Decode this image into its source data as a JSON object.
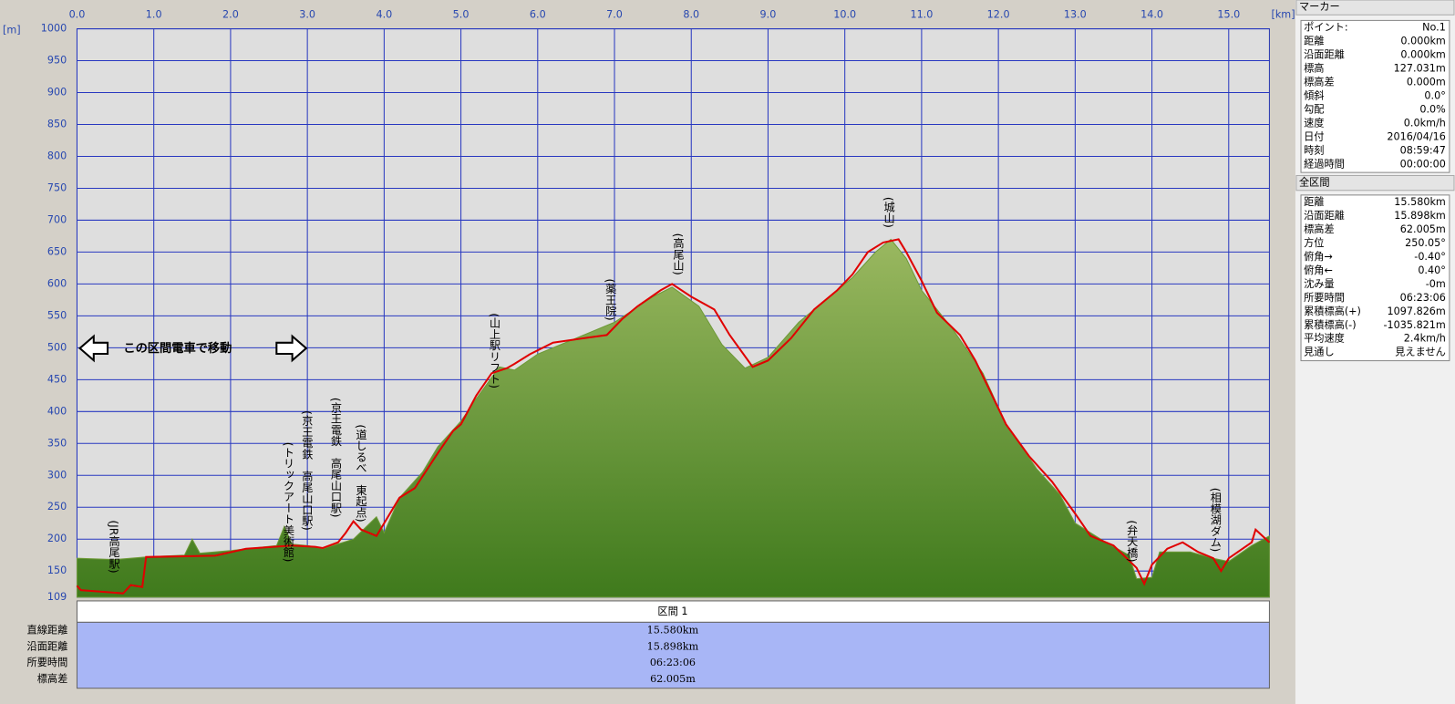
{
  "chart_data": {
    "type": "area",
    "x_unit": "[km]",
    "y_unit": "[m]",
    "xlim": [
      0,
      15.53
    ],
    "ylim": [
      109,
      1000
    ],
    "xticks": [
      {
        "value": 0,
        "label": "0.0"
      },
      {
        "value": 1,
        "label": "1.0"
      },
      {
        "value": 2,
        "label": "2.0"
      },
      {
        "value": 3,
        "label": "3.0"
      },
      {
        "value": 4,
        "label": "4.0"
      },
      {
        "value": 5,
        "label": "5.0"
      },
      {
        "value": 6,
        "label": "6.0"
      },
      {
        "value": 7,
        "label": "7.0"
      },
      {
        "value": 8,
        "label": "8.0"
      },
      {
        "value": 9,
        "label": "9.0"
      },
      {
        "value": 10,
        "label": "10.0"
      },
      {
        "value": 11,
        "label": "11.0"
      },
      {
        "value": 12,
        "label": "12.0"
      },
      {
        "value": 13,
        "label": "13.0"
      },
      {
        "value": 14,
        "label": "14.0"
      },
      {
        "value": 15,
        "label": "15.0"
      }
    ],
    "yticks": [
      109,
      150,
      200,
      250,
      300,
      350,
      400,
      450,
      500,
      550,
      600,
      650,
      700,
      750,
      800,
      850,
      900,
      950,
      1000
    ],
    "grid": true,
    "series": [
      {
        "type": "area",
        "color": "#6e9a38",
        "x": [
          0,
          0.5,
          0.9,
          1.4,
          1.5,
          1.6,
          2.0,
          2.6,
          2.7,
          2.8,
          3.0,
          3.2,
          3.6,
          3.9,
          4.0,
          4.2,
          4.5,
          4.7,
          5.0,
          5.2,
          5.35,
          5.5,
          5.7,
          6.0,
          6.5,
          7.0,
          7.5,
          7.75,
          8.1,
          8.4,
          8.7,
          9.0,
          9.4,
          9.8,
          10.1,
          10.4,
          10.6,
          10.8,
          11.0,
          11.4,
          11.8,
          12.1,
          12.5,
          12.8,
          13.0,
          13.4,
          13.7,
          13.8,
          14.0,
          14.1,
          14.5,
          14.8,
          15.0,
          15.3,
          15.53
        ],
        "values": [
          170,
          168,
          172,
          175,
          200,
          178,
          182,
          190,
          220,
          192,
          190,
          185,
          200,
          235,
          210,
          265,
          305,
          345,
          385,
          420,
          445,
          470,
          465,
          490,
          515,
          540,
          580,
          595,
          565,
          505,
          468,
          485,
          540,
          580,
          610,
          650,
          670,
          640,
          590,
          530,
          460,
          380,
          310,
          270,
          225,
          195,
          175,
          138,
          140,
          180,
          180,
          170,
          165,
          190,
          205
        ]
      },
      {
        "type": "line",
        "color": "#e00000",
        "x": [
          0,
          0.05,
          0.6,
          0.7,
          0.85,
          0.9,
          1.8,
          2.2,
          2.8,
          3.1,
          3.2,
          3.4,
          3.5,
          3.6,
          3.7,
          3.9,
          4.0,
          4.2,
          4.4,
          4.7,
          4.9,
          5.0,
          5.2,
          5.4,
          5.6,
          5.7,
          5.9,
          6.2,
          6.6,
          6.9,
          7.1,
          7.3,
          7.6,
          7.75,
          8.0,
          8.3,
          8.5,
          8.8,
          9.0,
          9.3,
          9.6,
          9.9,
          10.1,
          10.3,
          10.5,
          10.7,
          10.8,
          11.0,
          11.2,
          11.5,
          11.7,
          11.9,
          12.1,
          12.4,
          12.7,
          13.0,
          13.2,
          13.5,
          13.8,
          13.9,
          14.0,
          14.2,
          14.4,
          14.6,
          14.8,
          14.9,
          15.0,
          15.3,
          15.35,
          15.53
        ],
        "values": [
          127,
          120,
          115,
          128,
          125,
          172,
          174,
          185,
          190,
          188,
          186,
          195,
          210,
          228,
          215,
          205,
          225,
          265,
          280,
          335,
          370,
          380,
          425,
          460,
          468,
          475,
          490,
          508,
          515,
          520,
          545,
          565,
          590,
          600,
          580,
          560,
          520,
          470,
          480,
          515,
          560,
          590,
          615,
          650,
          665,
          670,
          650,
          605,
          555,
          520,
          480,
          430,
          380,
          330,
          290,
          240,
          205,
          190,
          155,
          130,
          160,
          185,
          195,
          180,
          170,
          150,
          170,
          195,
          215,
          195
        ]
      }
    ],
    "annotations": [
      "(JR高尾駅)",
      "(トリックアート美術館)",
      "(京王電鉄　高尾山口駅)",
      "(京王電鉄　高尾山口駅)",
      "(道しるべ　東起点)",
      "(山上駅リフト)",
      "(薬王院)",
      "(高尾山)",
      "(城山)",
      "(弁天橋)",
      "(相模湖ダム)"
    ],
    "note": "この区間電車で移動"
  },
  "segment_table": {
    "header": "区間 1",
    "rows": [
      [
        "直線距離",
        "15.580km"
      ],
      [
        "沿面距離",
        "15.898km"
      ],
      [
        "所要時間",
        "06:23:06"
      ],
      [
        "標高差",
        "62.005m"
      ]
    ]
  },
  "marker_panel": {
    "title": "マーカー",
    "rows": [
      [
        "ポイント:",
        "No.1"
      ],
      [
        "距離",
        "0.000km"
      ],
      [
        "沿面距離",
        "0.000km"
      ],
      [
        "標高",
        "127.031m"
      ],
      [
        "標高差",
        "0.000m"
      ],
      [
        "傾斜",
        "0.0°"
      ],
      [
        "勾配",
        "0.0%"
      ],
      [
        "速度",
        "0.0km/h"
      ],
      [
        "日付",
        "2016/04/16"
      ],
      [
        "時刻",
        "08:59:47"
      ],
      [
        "経過時間",
        "00:00:00"
      ]
    ]
  },
  "section_panel": {
    "title": "全区間",
    "rows": [
      [
        "距離",
        "15.580km"
      ],
      [
        "沿面距離",
        "15.898km"
      ],
      [
        "標高差",
        "62.005m"
      ],
      [
        "方位",
        "250.05°"
      ],
      [
        "俯角→",
        "-0.40°"
      ],
      [
        "俯角←",
        "0.40°"
      ],
      [
        "沈み量",
        "-0m"
      ],
      [
        "所要時間",
        "06:23:06"
      ],
      [
        "累積標高(+)",
        "1097.826m"
      ],
      [
        "累積標高(-)",
        "-1035.821m"
      ],
      [
        "平均速度",
        "2.4km/h"
      ],
      [
        "見通し",
        "見えません"
      ]
    ]
  }
}
